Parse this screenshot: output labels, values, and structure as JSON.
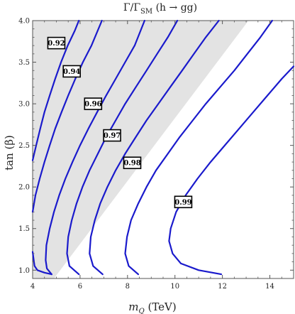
{
  "chart_data": {
    "type": "line",
    "title_prefix": "Γ/Γ",
    "title_sub": "SM",
    "title_suffix": " (h → gg)",
    "xlabel_main": "m",
    "xlabel_sub": "Q",
    "xlabel_unit": " (TeV)",
    "ylabel": "tan (β)",
    "xlim": [
      4,
      15
    ],
    "ylim": [
      0.9,
      4.0
    ],
    "xticks": [
      4,
      6,
      8,
      10,
      12,
      14
    ],
    "yticks": [
      1.0,
      1.5,
      2.0,
      2.5,
      3.0,
      3.5,
      4.0
    ],
    "ytick_labels": [
      "1.0",
      "1.5",
      "2.0",
      "2.5",
      "3.0",
      "3.5",
      "4.0"
    ],
    "shaded_region_color": "#e3e3e3",
    "line_color": "#1a1acc",
    "shaded_region": [
      [
        4,
        0.9
      ],
      [
        4,
        4.0
      ],
      [
        13.1,
        4.0
      ],
      [
        4.9,
        0.9
      ]
    ],
    "series": [
      {
        "label": "0.92",
        "label_at": [
          5.0,
          3.73
        ],
        "points": [
          [
            4.0,
            2.32
          ],
          [
            4.15,
            2.5
          ],
          [
            4.32,
            2.7
          ],
          [
            4.5,
            2.9
          ],
          [
            4.72,
            3.1
          ],
          [
            4.95,
            3.3
          ],
          [
            5.2,
            3.5
          ],
          [
            5.48,
            3.7
          ],
          [
            5.78,
            3.88
          ],
          [
            5.95,
            4.0
          ]
        ]
      },
      {
        "label": "0.94",
        "label_at": [
          5.65,
          3.39
        ],
        "points": [
          [
            4.0,
            1.7
          ],
          [
            4.12,
            1.9
          ],
          [
            4.3,
            2.1
          ],
          [
            4.5,
            2.3
          ],
          [
            4.72,
            2.5
          ],
          [
            4.95,
            2.7
          ],
          [
            5.22,
            2.9
          ],
          [
            5.5,
            3.1
          ],
          [
            5.8,
            3.3
          ],
          [
            6.12,
            3.5
          ],
          [
            6.48,
            3.7
          ],
          [
            6.92,
            4.0
          ]
        ]
      },
      {
        "label": "0.96",
        "label_at": [
          6.55,
          3.0
        ],
        "points": [
          [
            4.8,
            0.95
          ],
          [
            4.6,
            1.02
          ],
          [
            4.55,
            1.12
          ],
          [
            4.58,
            1.3
          ],
          [
            4.72,
            1.5
          ],
          [
            4.9,
            1.7
          ],
          [
            5.12,
            1.9
          ],
          [
            5.38,
            2.1
          ],
          [
            5.68,
            2.3
          ],
          [
            6.0,
            2.5
          ],
          [
            6.35,
            2.7
          ],
          [
            6.72,
            2.9
          ],
          [
            7.1,
            3.1
          ],
          [
            7.5,
            3.3
          ],
          [
            7.9,
            3.5
          ],
          [
            8.3,
            3.7
          ],
          [
            8.72,
            4.0
          ]
        ]
      },
      {
        "label": "0.97",
        "label_at": [
          7.35,
          2.62
        ],
        "points": [
          [
            5.95,
            0.95
          ],
          [
            5.55,
            1.05
          ],
          [
            5.45,
            1.2
          ],
          [
            5.5,
            1.4
          ],
          [
            5.65,
            1.6
          ],
          [
            5.85,
            1.8
          ],
          [
            6.1,
            2.0
          ],
          [
            6.4,
            2.2
          ],
          [
            6.75,
            2.4
          ],
          [
            7.1,
            2.6
          ],
          [
            7.5,
            2.8
          ],
          [
            7.9,
            3.0
          ],
          [
            8.35,
            3.2
          ],
          [
            8.8,
            3.4
          ],
          [
            9.25,
            3.6
          ],
          [
            9.7,
            3.8
          ],
          [
            10.1,
            4.0
          ]
        ]
      },
      {
        "label": "0.98",
        "label_at": [
          8.2,
          2.29
        ],
        "points": [
          [
            6.95,
            0.95
          ],
          [
            6.55,
            1.05
          ],
          [
            6.4,
            1.2
          ],
          [
            6.45,
            1.4
          ],
          [
            6.62,
            1.6
          ],
          [
            6.85,
            1.8
          ],
          [
            7.15,
            2.0
          ],
          [
            7.5,
            2.2
          ],
          [
            7.9,
            2.4
          ],
          [
            8.35,
            2.6
          ],
          [
            8.8,
            2.8
          ],
          [
            9.3,
            3.0
          ],
          [
            9.8,
            3.2
          ],
          [
            10.3,
            3.4
          ],
          [
            10.8,
            3.6
          ],
          [
            11.3,
            3.8
          ],
          [
            11.85,
            4.0
          ]
        ]
      },
      {
        "label": "0.99",
        "label_at": [
          10.35,
          1.82
        ],
        "points": [
          [
            8.45,
            0.95
          ],
          [
            8.05,
            1.05
          ],
          [
            7.9,
            1.2
          ],
          [
            7.98,
            1.4
          ],
          [
            8.15,
            1.6
          ],
          [
            8.45,
            1.8
          ],
          [
            8.8,
            2.0
          ],
          [
            9.2,
            2.2
          ],
          [
            9.7,
            2.4
          ],
          [
            10.2,
            2.6
          ],
          [
            10.75,
            2.8
          ],
          [
            11.3,
            3.0
          ],
          [
            11.9,
            3.2
          ],
          [
            12.5,
            3.4
          ],
          [
            13.05,
            3.6
          ],
          [
            13.6,
            3.8
          ],
          [
            14.1,
            4.0
          ]
        ]
      },
      {
        "label": "",
        "points": [
          [
            11.95,
            0.95
          ],
          [
            11.0,
            1.0
          ],
          [
            10.25,
            1.08
          ],
          [
            9.9,
            1.2
          ],
          [
            9.75,
            1.35
          ],
          [
            9.82,
            1.5
          ],
          [
            10.05,
            1.7
          ],
          [
            10.45,
            1.9
          ],
          [
            10.95,
            2.1
          ],
          [
            11.5,
            2.3
          ],
          [
            12.1,
            2.5
          ],
          [
            12.7,
            2.7
          ],
          [
            13.3,
            2.9
          ],
          [
            13.9,
            3.1
          ],
          [
            14.5,
            3.3
          ],
          [
            15.0,
            3.45
          ]
        ]
      },
      {
        "label": "",
        "points": [
          [
            4.0,
            1.22
          ],
          [
            4.08,
            1.05
          ],
          [
            4.2,
            1.0
          ],
          [
            4.5,
            0.97
          ],
          [
            4.8,
            0.95
          ]
        ]
      }
    ]
  }
}
